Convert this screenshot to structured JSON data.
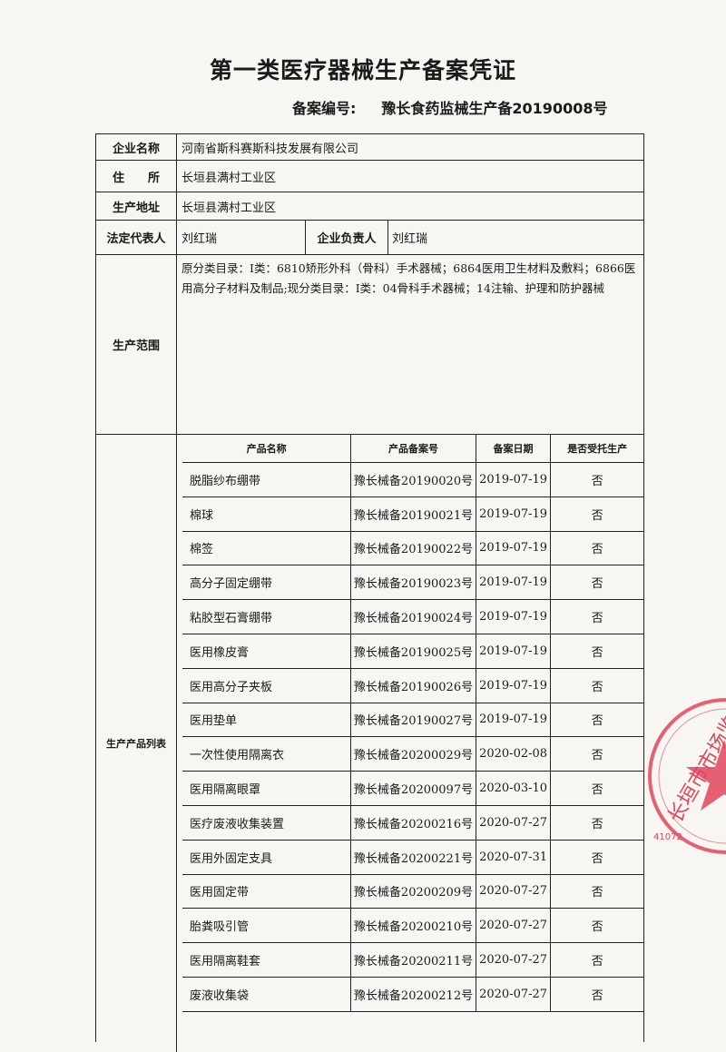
{
  "title": "第一类医疗器械生产备案凭证",
  "record": {
    "label": "备案编号:",
    "value": "豫长食药监械生产备20190008号"
  },
  "fields": {
    "company_label": "企业名称",
    "company": "河南省斯科赛斯科技发展有限公司",
    "address_label": "住　　所",
    "address": "长垣县满村工业区",
    "prod_addr_label": "生产地址",
    "prod_addr": "长垣县满村工业区",
    "legal_label": "法定代表人",
    "legal": "刘红瑞",
    "head_label": "企业负责人",
    "head": "刘红瑞",
    "scope_label": "生产范围",
    "scope": "原分类目录：Ⅰ类：6810矫形外科（骨科）手术器械；6864医用卫生材料及敷料；6866医用高分子材料及制品;现分类目录：Ⅰ类：04骨科手术器械；14注输、护理和防护器械",
    "list_label": "生产产品列表"
  },
  "products": {
    "headers": [
      "产品名称",
      "产品备案号",
      "备案日期",
      "是否受托生产"
    ],
    "rows": [
      [
        "脱脂纱布绷带",
        "豫长械备20190020号",
        "2019-07-19",
        "否"
      ],
      [
        "棉球",
        "豫长械备20190021号",
        "2019-07-19",
        "否"
      ],
      [
        "棉签",
        "豫长械备20190022号",
        "2019-07-19",
        "否"
      ],
      [
        "高分子固定绷带",
        "豫长械备20190023号",
        "2019-07-19",
        "否"
      ],
      [
        "粘胶型石膏绷带",
        "豫长械备20190024号",
        "2019-07-19",
        "否"
      ],
      [
        "医用橡皮膏",
        "豫长械备20190025号",
        "2019-07-19",
        "否"
      ],
      [
        "医用高分子夹板",
        "豫长械备20190026号",
        "2019-07-19",
        "否"
      ],
      [
        "医用垫单",
        "豫长械备20190027号",
        "2019-07-19",
        "否"
      ],
      [
        "一次性使用隔离衣",
        "豫长械备20200029号",
        "2020-02-08",
        "否"
      ],
      [
        "医用隔离眼罩",
        "豫长械备20200097号",
        "2020-03-10",
        "否"
      ],
      [
        "医疗废液收集装置",
        "豫长械备20200216号",
        "2020-07-27",
        "否"
      ],
      [
        "医用外固定支具",
        "豫长械备20200221号",
        "2020-07-31",
        "否"
      ],
      [
        "医用固定带",
        "豫长械备20200209号",
        "2020-07-27",
        "否"
      ],
      [
        "胎粪吸引管",
        "豫长械备20200210号",
        "2020-07-27",
        "否"
      ],
      [
        "医用隔离鞋套",
        "豫长械备20200211号",
        "2020-07-27",
        "否"
      ],
      [
        "废液收集袋",
        "豫长械备20200212号",
        "2020-07-27",
        "否"
      ]
    ]
  },
  "stamp": {
    "text": "长垣市市场监",
    "code": "41072",
    "color": "#e0455a"
  }
}
